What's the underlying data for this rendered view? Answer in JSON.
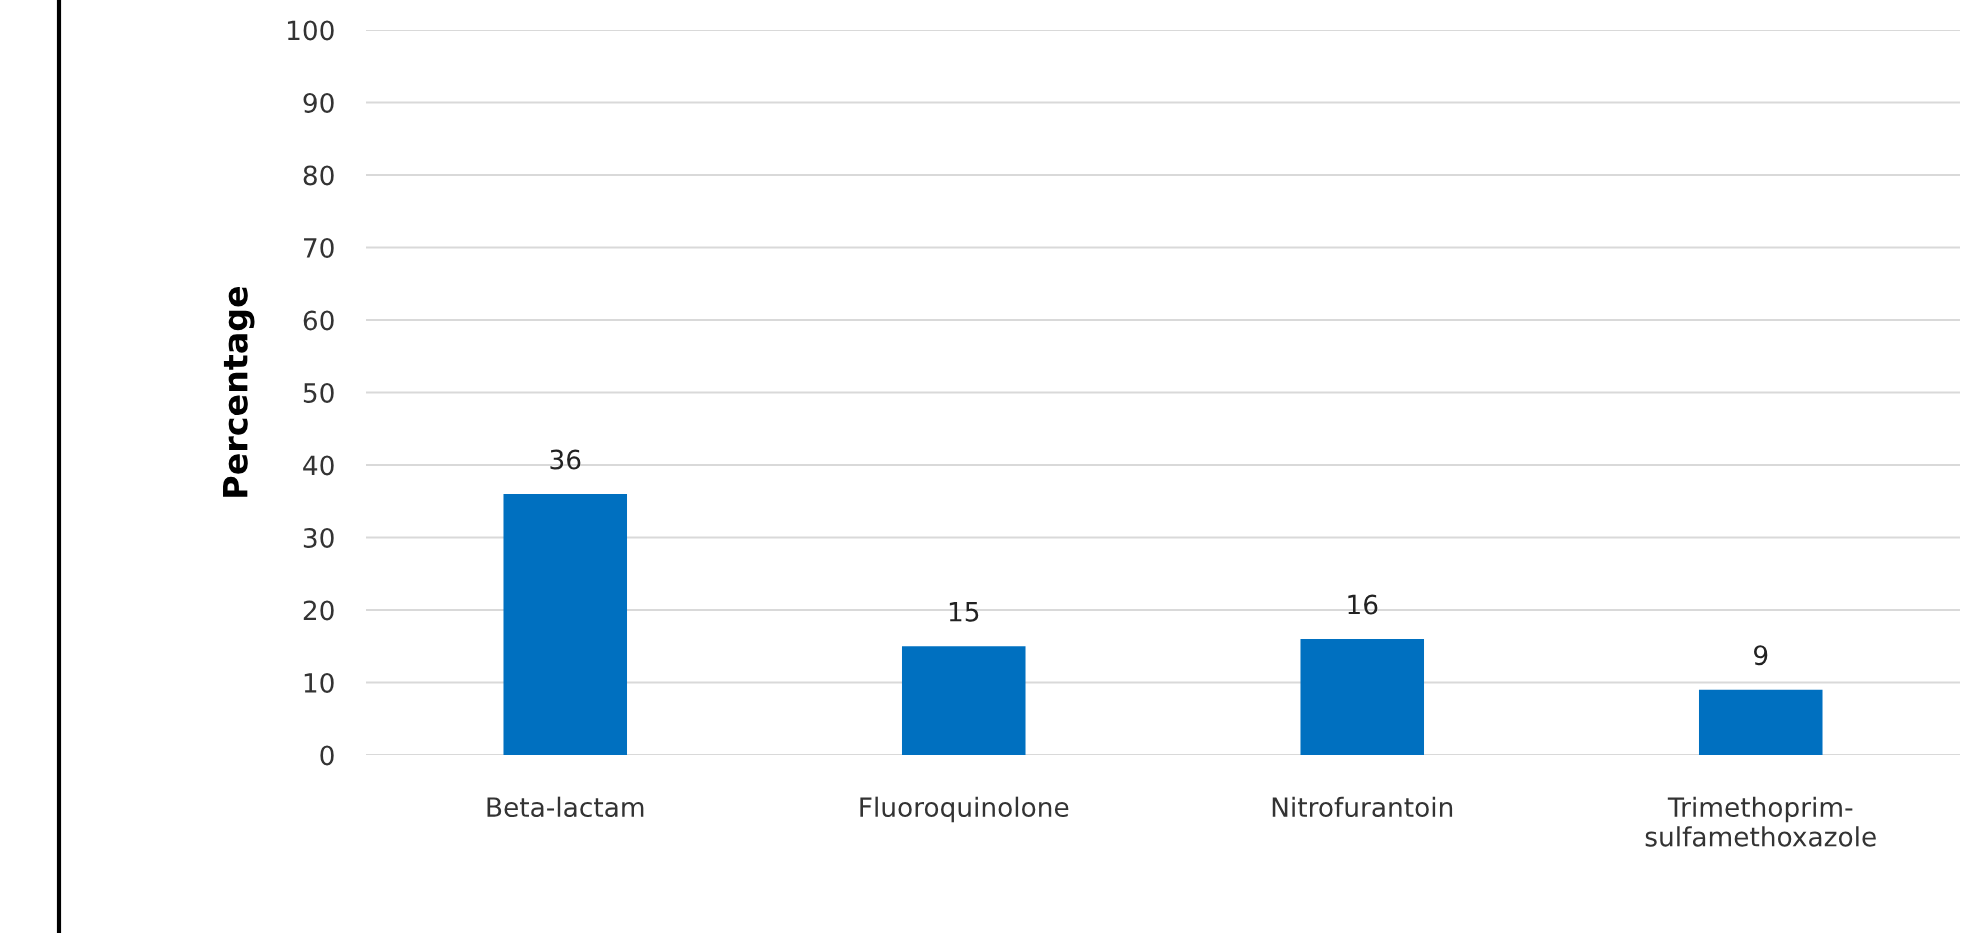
{
  "chart_data": {
    "type": "bar",
    "ylabel": "Percentage",
    "categories": [
      "Beta-lactam",
      "Fluoroquinolone",
      "Nitrofurantoin",
      "Trimethoprim-\nsulfamethoxazole"
    ],
    "values": [
      36,
      15,
      16,
      9
    ],
    "color": "#0070c0",
    "ylim": [
      0,
      100
    ],
    "yticks": [
      0,
      10,
      20,
      30,
      40,
      50,
      60,
      70,
      80,
      90,
      100
    ],
    "grid": "y",
    "data_labels": true
  }
}
